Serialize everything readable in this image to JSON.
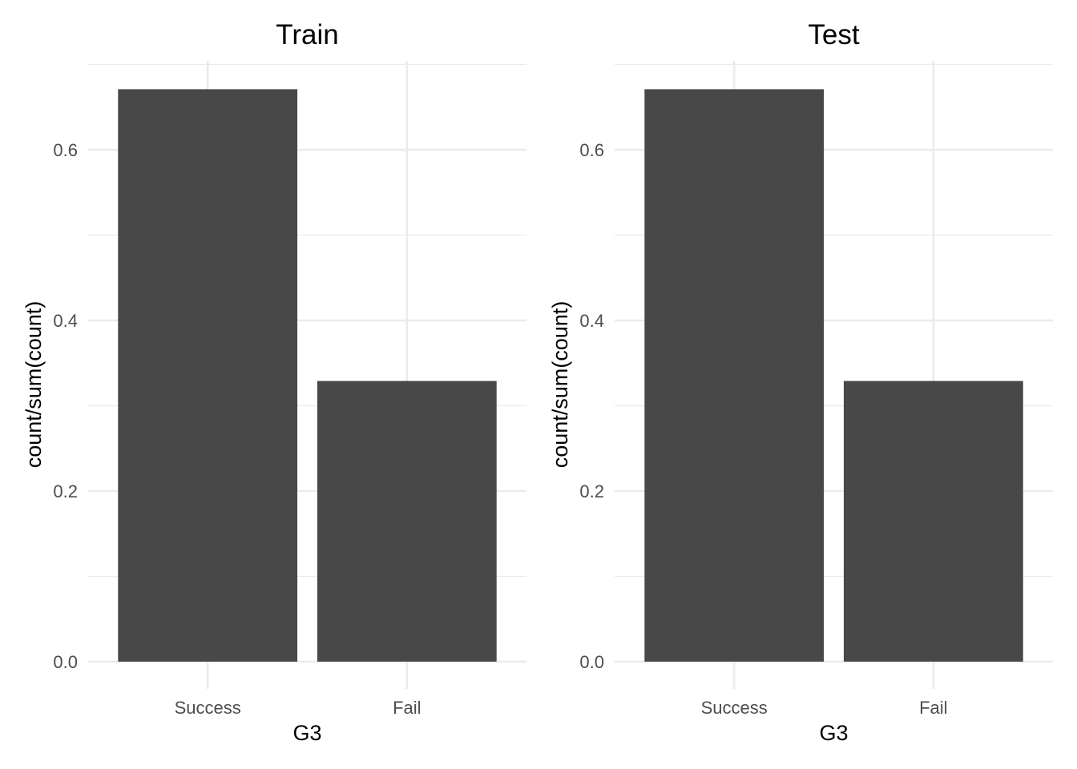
{
  "chart_data": [
    {
      "type": "bar",
      "title": "Train",
      "xlabel": "G3",
      "ylabel": "count/sum(count)",
      "categories": [
        "Success",
        "Fail"
      ],
      "values": [
        0.671,
        0.329
      ],
      "ylim": [
        0,
        0.7
      ],
      "yticks": [
        "0.0",
        "0.2",
        "0.4",
        "0.6"
      ],
      "grid": true,
      "bar_color": "#484848"
    },
    {
      "type": "bar",
      "title": "Test",
      "xlabel": "G3",
      "ylabel": "count/sum(count)",
      "categories": [
        "Success",
        "Fail"
      ],
      "values": [
        0.671,
        0.329
      ],
      "ylim": [
        0,
        0.7
      ],
      "yticks": [
        "0.0",
        "0.2",
        "0.4",
        "0.6"
      ],
      "grid": true,
      "bar_color": "#484848"
    }
  ]
}
